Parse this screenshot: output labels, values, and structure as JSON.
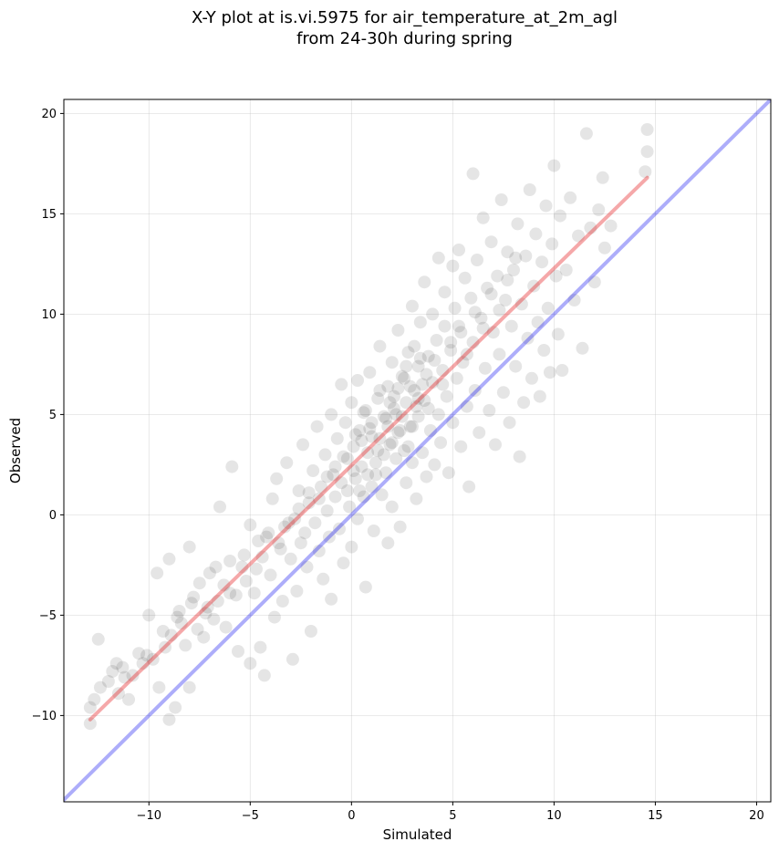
{
  "chart_data": {
    "type": "scatter",
    "title": "X-Y plot at is.vi.5975 for air_temperature_at_2m_agl",
    "subtitle": "from 24-30h during spring",
    "xlabel": "Simulated",
    "ylabel": "Observed",
    "xlim": [
      -14.2,
      20.7
    ],
    "ylim": [
      -14.3,
      20.7
    ],
    "xticks": [
      -10,
      -5,
      0,
      5,
      10,
      15,
      20
    ],
    "yticks": [
      -10,
      -5,
      0,
      5,
      10,
      15,
      20
    ],
    "xtick_labels": [
      "−10",
      "−5",
      "0",
      "5",
      "10",
      "15",
      "20"
    ],
    "ytick_labels": [
      "−10",
      "−5",
      "0",
      "5",
      "10",
      "15",
      "20"
    ],
    "grid": true,
    "point_color": "#000000",
    "point_alpha": 0.1,
    "regression_line": {
      "x": [
        -12.9,
        14.6
      ],
      "y": [
        -10.2,
        16.8
      ],
      "color": "#e41a1c"
    },
    "identity_line": {
      "x": [
        -14.2,
        20.7
      ],
      "y": [
        -14.2,
        20.7
      ],
      "color": "#0000ee"
    },
    "points": [
      [
        -12.9,
        -10.4
      ],
      [
        -12.9,
        -9.6
      ],
      [
        -12.7,
        -9.2
      ],
      [
        -12.5,
        -6.2
      ],
      [
        -12.4,
        -8.6
      ],
      [
        -12.0,
        -8.3
      ],
      [
        -11.8,
        -7.8
      ],
      [
        -11.6,
        -7.4
      ],
      [
        -11.5,
        -8.9
      ],
      [
        -11.3,
        -7.6
      ],
      [
        -11.0,
        -9.2
      ],
      [
        -10.8,
        -8.0
      ],
      [
        -10.5,
        -6.9
      ],
      [
        -10.3,
        -7.4
      ],
      [
        -10.0,
        -5.0
      ],
      [
        -9.8,
        -7.2
      ],
      [
        -9.6,
        -2.9
      ],
      [
        -9.5,
        -8.6
      ],
      [
        -9.3,
        -5.8
      ],
      [
        -9.0,
        -2.2
      ],
      [
        -9.0,
        -10.2
      ],
      [
        -8.9,
        -6.0
      ],
      [
        -8.7,
        -9.6
      ],
      [
        -8.5,
        -4.8
      ],
      [
        -8.4,
        -5.4
      ],
      [
        -8.2,
        -6.5
      ],
      [
        -8.0,
        -1.6
      ],
      [
        -8.0,
        -8.6
      ],
      [
        -7.8,
        -4.1
      ],
      [
        -7.6,
        -5.7
      ],
      [
        -7.5,
        -3.4
      ],
      [
        -7.3,
        -6.1
      ],
      [
        -7.1,
        -4.6
      ],
      [
        -7.0,
        -2.9
      ],
      [
        -6.8,
        -5.2
      ],
      [
        -6.6,
        -4.3
      ],
      [
        -6.5,
        0.4
      ],
      [
        -6.3,
        -3.5
      ],
      [
        -6.2,
        -5.6
      ],
      [
        -6.0,
        -2.3
      ],
      [
        -5.9,
        2.4
      ],
      [
        -5.7,
        -4.0
      ],
      [
        -5.6,
        -6.8
      ],
      [
        -5.4,
        -2.6
      ],
      [
        -5.2,
        -3.3
      ],
      [
        -5.0,
        -0.5
      ],
      [
        -5.0,
        -7.4
      ],
      [
        -4.8,
        -3.9
      ],
      [
        -4.6,
        -1.3
      ],
      [
        -4.5,
        -6.6
      ],
      [
        -4.4,
        -2.1
      ],
      [
        -4.3,
        -8.0
      ],
      [
        -4.1,
        -0.9
      ],
      [
        -4.0,
        -3.0
      ],
      [
        -3.9,
        0.8
      ],
      [
        -3.8,
        -5.1
      ],
      [
        -3.7,
        1.8
      ],
      [
        -3.5,
        -1.7
      ],
      [
        -3.4,
        -4.3
      ],
      [
        -3.3,
        -0.6
      ],
      [
        -3.2,
        2.6
      ],
      [
        -3.0,
        -2.2
      ],
      [
        -2.9,
        -7.2
      ],
      [
        -2.8,
        -0.2
      ],
      [
        -2.7,
        -3.8
      ],
      [
        -2.6,
        1.2
      ],
      [
        -2.5,
        -1.4
      ],
      [
        -2.4,
        3.5
      ],
      [
        -2.3,
        -0.9
      ],
      [
        -2.2,
        -2.6
      ],
      [
        -2.1,
        0.6
      ],
      [
        -2.0,
        -5.8
      ],
      [
        -1.9,
        2.2
      ],
      [
        -1.8,
        -0.4
      ],
      [
        -1.7,
        4.4
      ],
      [
        -1.6,
        -1.8
      ],
      [
        -1.5,
        1.4
      ],
      [
        -1.4,
        -3.2
      ],
      [
        -1.3,
        3.0
      ],
      [
        -1.2,
        0.2
      ],
      [
        -1.1,
        -1.1
      ],
      [
        -1.0,
        5.0
      ],
      [
        -1.0,
        -4.2
      ],
      [
        -0.9,
        2.0
      ],
      [
        -0.8,
        0.9
      ],
      [
        -0.7,
        3.8
      ],
      [
        -0.6,
        -0.7
      ],
      [
        -0.5,
        1.6
      ],
      [
        -0.5,
        6.5
      ],
      [
        -0.4,
        -2.4
      ],
      [
        -0.3,
        4.6
      ],
      [
        -0.2,
        2.8
      ],
      [
        -0.1,
        0.4
      ],
      [
        0.0,
        5.6
      ],
      [
        0.0,
        -1.6
      ],
      [
        0.1,
        3.4
      ],
      [
        0.2,
        1.8
      ],
      [
        0.3,
        6.7
      ],
      [
        0.3,
        -0.2
      ],
      [
        0.4,
        4.2
      ],
      [
        0.5,
        2.4
      ],
      [
        0.6,
        0.9
      ],
      [
        0.7,
        5.2
      ],
      [
        0.7,
        -3.6
      ],
      [
        0.8,
        3.1
      ],
      [
        0.9,
        7.1
      ],
      [
        1.0,
        1.4
      ],
      [
        1.0,
        4.6
      ],
      [
        1.1,
        -0.8
      ],
      [
        1.2,
        2.6
      ],
      [
        1.3,
        5.8
      ],
      [
        1.4,
        3.8
      ],
      [
        1.4,
        8.4
      ],
      [
        1.5,
        1.0
      ],
      [
        1.6,
        4.9
      ],
      [
        1.7,
        2.1
      ],
      [
        1.8,
        6.4
      ],
      [
        1.8,
        -1.4
      ],
      [
        1.9,
        3.5
      ],
      [
        2.0,
        7.6
      ],
      [
        2.0,
        0.4
      ],
      [
        2.1,
        5.3
      ],
      [
        2.2,
        2.8
      ],
      [
        2.3,
        9.2
      ],
      [
        2.3,
        4.1
      ],
      [
        2.4,
        -0.6
      ],
      [
        2.5,
        6.9
      ],
      [
        2.6,
        3.2
      ],
      [
        2.7,
        5.6
      ],
      [
        2.7,
        1.6
      ],
      [
        2.8,
        8.1
      ],
      [
        2.9,
        4.4
      ],
      [
        3.0,
        10.4
      ],
      [
        3.0,
        2.6
      ],
      [
        3.1,
        6.2
      ],
      [
        3.2,
        0.8
      ],
      [
        3.3,
        7.4
      ],
      [
        3.3,
        4.9
      ],
      [
        3.4,
        9.6
      ],
      [
        3.5,
        3.1
      ],
      [
        3.6,
        5.7
      ],
      [
        3.6,
        11.6
      ],
      [
        3.7,
        1.9
      ],
      [
        3.8,
        7.9
      ],
      [
        3.9,
        4.2
      ],
      [
        4.0,
        10.0
      ],
      [
        4.0,
        6.6
      ],
      [
        4.1,
        2.5
      ],
      [
        4.2,
        8.7
      ],
      [
        4.3,
        12.8
      ],
      [
        4.3,
        5.0
      ],
      [
        4.4,
        3.6
      ],
      [
        4.5,
        7.2
      ],
      [
        4.6,
        11.1
      ],
      [
        4.6,
        9.4
      ],
      [
        4.7,
        5.9
      ],
      [
        4.8,
        2.1
      ],
      [
        4.9,
        8.2
      ],
      [
        5.0,
        12.4
      ],
      [
        5.0,
        4.6
      ],
      [
        5.1,
        10.3
      ],
      [
        5.2,
        6.8
      ],
      [
        5.3,
        13.2
      ],
      [
        5.4,
        3.4
      ],
      [
        5.4,
        9.1
      ],
      [
        5.5,
        7.6
      ],
      [
        5.6,
        11.8
      ],
      [
        5.7,
        5.4
      ],
      [
        5.8,
        1.4
      ],
      [
        5.9,
        10.8
      ],
      [
        6.0,
        8.6
      ],
      [
        6.0,
        17.0
      ],
      [
        6.1,
        6.2
      ],
      [
        6.2,
        12.7
      ],
      [
        6.3,
        4.1
      ],
      [
        6.4,
        9.8
      ],
      [
        6.5,
        14.8
      ],
      [
        6.6,
        7.3
      ],
      [
        6.7,
        11.3
      ],
      [
        6.8,
        5.2
      ],
      [
        6.9,
        13.6
      ],
      [
        7.0,
        9.1
      ],
      [
        7.1,
        3.5
      ],
      [
        7.2,
        11.9
      ],
      [
        7.3,
        8.0
      ],
      [
        7.4,
        15.7
      ],
      [
        7.5,
        6.1
      ],
      [
        7.6,
        10.7
      ],
      [
        7.7,
        13.1
      ],
      [
        7.8,
        4.6
      ],
      [
        7.9,
        9.4
      ],
      [
        8.0,
        12.2
      ],
      [
        8.1,
        7.4
      ],
      [
        8.2,
        14.5
      ],
      [
        8.3,
        2.9
      ],
      [
        8.4,
        10.5
      ],
      [
        8.5,
        5.6
      ],
      [
        8.6,
        12.9
      ],
      [
        8.7,
        8.8
      ],
      [
        8.8,
        16.2
      ],
      [
        8.9,
        6.8
      ],
      [
        9.0,
        11.4
      ],
      [
        9.1,
        14.0
      ],
      [
        9.2,
        9.6
      ],
      [
        9.3,
        5.9
      ],
      [
        9.4,
        12.6
      ],
      [
        9.5,
        8.2
      ],
      [
        9.6,
        15.4
      ],
      [
        9.7,
        10.3
      ],
      [
        9.8,
        7.1
      ],
      [
        9.9,
        13.5
      ],
      [
        10.0,
        17.4
      ],
      [
        10.1,
        11.9
      ],
      [
        10.2,
        9.0
      ],
      [
        10.3,
        14.9
      ],
      [
        10.4,
        7.2
      ],
      [
        10.6,
        12.2
      ],
      [
        10.8,
        15.8
      ],
      [
        11.0,
        10.7
      ],
      [
        11.2,
        13.9
      ],
      [
        11.4,
        8.3
      ],
      [
        11.6,
        19.0
      ],
      [
        11.8,
        14.3
      ],
      [
        12.0,
        11.6
      ],
      [
        12.2,
        15.2
      ],
      [
        12.4,
        16.8
      ],
      [
        12.5,
        13.3
      ],
      [
        12.8,
        14.4
      ],
      [
        14.6,
        19.2
      ],
      [
        14.6,
        18.1
      ],
      [
        14.5,
        17.1
      ],
      [
        -11.2,
        -8.1
      ],
      [
        -10.1,
        -7.0
      ],
      [
        -9.2,
        -6.6
      ],
      [
        -8.6,
        -5.1
      ],
      [
        -7.9,
        -4.4
      ],
      [
        -7.2,
        -4.9
      ],
      [
        -6.7,
        -2.6
      ],
      [
        -6.0,
        -3.9
      ],
      [
        -5.3,
        -2.0
      ],
      [
        -4.7,
        -2.7
      ],
      [
        -4.2,
        -1.1
      ],
      [
        -3.6,
        -1.4
      ],
      [
        -3.1,
        -0.4
      ],
      [
        -2.6,
        0.3
      ],
      [
        -2.1,
        1.1
      ],
      [
        -1.6,
        0.8
      ],
      [
        -1.2,
        1.9
      ],
      [
        -0.8,
        2.4
      ],
      [
        -0.4,
        2.9
      ],
      [
        0.1,
        2.2
      ],
      [
        0.5,
        3.7
      ],
      [
        0.9,
        4.3
      ],
      [
        1.3,
        3.2
      ],
      [
        1.7,
        4.8
      ],
      [
        2.1,
        5.9
      ],
      [
        2.5,
        4.9
      ],
      [
        2.9,
        6.4
      ],
      [
        3.3,
        5.8
      ],
      [
        3.7,
        7.0
      ],
      [
        4.1,
        7.7
      ],
      [
        4.5,
        6.5
      ],
      [
        4.9,
        8.6
      ],
      [
        5.3,
        9.4
      ],
      [
        5.7,
        8.0
      ],
      [
        6.1,
        10.1
      ],
      [
        6.5,
        9.3
      ],
      [
        6.9,
        11.0
      ],
      [
        7.3,
        10.2
      ],
      [
        7.7,
        11.7
      ],
      [
        8.1,
        12.8
      ],
      [
        0.2,
        4.0
      ],
      [
        0.6,
        5.1
      ],
      [
        1.0,
        3.9
      ],
      [
        1.4,
        6.2
      ],
      [
        1.8,
        4.4
      ],
      [
        2.2,
        5.0
      ],
      [
        2.6,
        6.8
      ],
      [
        3.0,
        4.4
      ],
      [
        3.4,
        7.8
      ],
      [
        3.8,
        5.3
      ],
      [
        1.2,
        2.0
      ],
      [
        1.6,
        3.0
      ],
      [
        2.0,
        3.6
      ],
      [
        2.4,
        4.2
      ],
      [
        2.8,
        3.4
      ],
      [
        3.2,
        5.4
      ],
      [
        -0.2,
        1.2
      ],
      [
        0.4,
        1.2
      ],
      [
        0.8,
        2.0
      ],
      [
        1.9,
        5.6
      ],
      [
        2.3,
        6.3
      ],
      [
        2.7,
        7.4
      ],
      [
        3.1,
        8.4
      ],
      [
        3.5,
        6.5
      ]
    ]
  }
}
